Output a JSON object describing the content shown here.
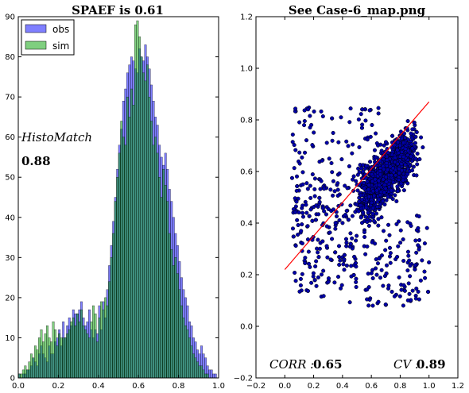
{
  "chart_data": [
    {
      "type": "bar",
      "title": "SPAEF is 0.61",
      "xlim": [
        0,
        1
      ],
      "ylim": [
        0,
        90
      ],
      "xticks": [
        "0.0",
        "0.2",
        "0.4",
        "0.6",
        "0.8",
        "1.0"
      ],
      "yticks": [
        "0",
        "10",
        "20",
        "30",
        "40",
        "50",
        "60",
        "70",
        "80",
        "90"
      ],
      "legend": {
        "placement": "top-left",
        "entries": [
          "obs",
          "sim"
        ]
      },
      "annotations": {
        "label": "HistoMatch",
        "value": "0.88"
      },
      "bin_width": 0.01,
      "series": [
        {
          "name": "obs",
          "color": "#0000ff",
          "values": [
            1,
            0,
            1,
            1,
            2,
            2,
            3,
            5,
            4,
            3,
            6,
            8,
            6,
            5,
            4,
            8,
            6,
            6,
            9,
            10,
            12,
            8,
            14,
            10,
            13,
            15,
            13,
            17,
            16,
            16,
            17,
            19,
            15,
            13,
            14,
            17,
            12,
            10,
            12,
            11,
            18,
            12,
            19,
            15,
            22,
            28,
            33,
            39,
            45,
            52,
            58,
            62,
            69,
            72,
            76,
            78,
            80,
            79,
            77,
            76,
            82,
            80,
            79,
            83,
            80,
            77,
            73,
            69,
            65,
            63,
            58,
            55,
            53,
            56,
            52,
            47,
            44,
            40,
            36,
            33,
            29,
            25,
            22,
            20,
            18,
            14,
            13,
            10,
            9,
            7,
            6,
            8,
            6,
            5,
            3,
            2,
            2,
            1,
            1,
            0
          ]
        },
        {
          "name": "sim",
          "color": "#00a000",
          "values": [
            1,
            1,
            2,
            3,
            2,
            4,
            6,
            5,
            8,
            7,
            10,
            12,
            9,
            11,
            13,
            10,
            9,
            14,
            12,
            8,
            11,
            10,
            10,
            10,
            11,
            12,
            14,
            15,
            13,
            16,
            14,
            17,
            13,
            12,
            11,
            10,
            14,
            18,
            16,
            9,
            15,
            19,
            17,
            20,
            18,
            24,
            30,
            36,
            44,
            50,
            56,
            64,
            60,
            58,
            70,
            65,
            72,
            68,
            88,
            89,
            85,
            80,
            76,
            74,
            78,
            70,
            64,
            58,
            60,
            56,
            50,
            45,
            52,
            48,
            44,
            36,
            32,
            28,
            30,
            26,
            22,
            18,
            15,
            13,
            12,
            10,
            8,
            6,
            5,
            4,
            3,
            3,
            2,
            1,
            1,
            0,
            0,
            0,
            0,
            0
          ]
        }
      ]
    },
    {
      "type": "scatter",
      "title": "See Case-6_map.png",
      "xlim": [
        -0.2,
        1.2
      ],
      "ylim": [
        -0.2,
        1.2
      ],
      "xticks": [
        "−0.2",
        "0.0",
        "0.2",
        "0.4",
        "0.6",
        "0.8",
        "1.0",
        "1.2"
      ],
      "yticks": [
        "−0.2",
        "0.0",
        "0.2",
        "0.4",
        "0.6",
        "0.8",
        "1.0",
        "1.2"
      ],
      "point_color": "#00008b",
      "trend_line": {
        "color": "#ff0000",
        "x": [
          0.0,
          1.0
        ],
        "y": [
          0.22,
          0.87
        ]
      },
      "annotations": {
        "corr_label": "CORR :",
        "corr_value": "0.65",
        "cv_label": "CV :",
        "cv_value": "0.89"
      },
      "point_cloud": {
        "count": 1600,
        "x_range": [
          0.0,
          1.0
        ],
        "y_range": [
          0.05,
          0.98
        ]
      }
    }
  ]
}
